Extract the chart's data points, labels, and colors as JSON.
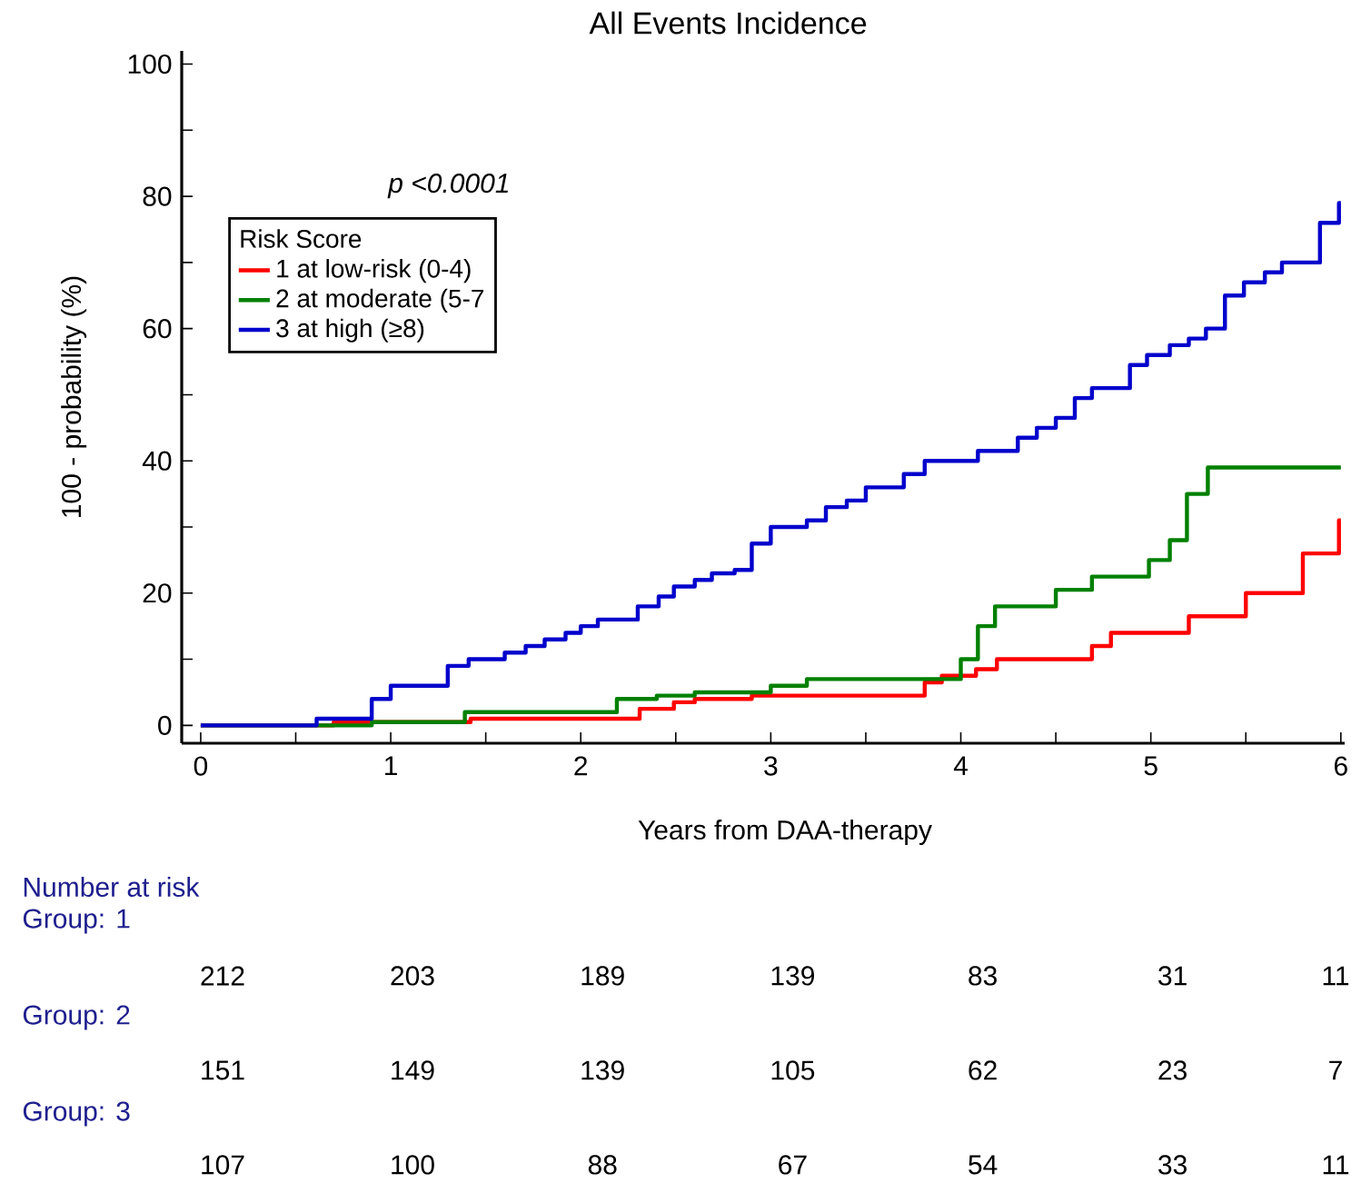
{
  "chart_data": {
    "type": "step",
    "title": "All Events Incidence",
    "xlabel": "Years from DAA-therapy",
    "ylabel": "100 -  probability (%)",
    "legend_title": "Risk Score",
    "legend": "top left",
    "grid": false,
    "marker": "none",
    "line_style": "solid",
    "xlim": [
      -0.1,
      6.02
    ],
    "ylim": [
      -2.7,
      102
    ],
    "xticks": [
      0,
      {
        "value": 0.5,
        "label": null
      },
      1,
      {
        "value": 1.5,
        "label": null
      },
      2,
      {
        "value": 2.5,
        "label": null
      },
      3,
      {
        "value": 3.5,
        "label": null
      },
      4,
      {
        "value": 4.5,
        "label": null
      },
      5,
      {
        "value": 5.5,
        "label": null
      },
      6
    ],
    "yticks": [
      0,
      {
        "value": 10,
        "label": null
      },
      20,
      {
        "value": 30,
        "label": null
      },
      40,
      {
        "value": 50,
        "label": null
      },
      60,
      {
        "value": 70,
        "label": null
      },
      80,
      {
        "value": 90,
        "label": null
      },
      100
    ],
    "series": [
      {
        "name": "1  at low-risk (0-4)",
        "color": "#ff0000",
        "x": [
          0,
          0.7,
          1.42,
          2.31,
          2.49,
          2.6,
          2.9,
          3.81,
          3.9,
          4.08,
          4.19,
          4.69,
          4.79,
          5.2,
          5.5,
          5.8,
          5.99,
          6.0
        ],
        "values": [
          0,
          0.5,
          1,
          2.5,
          3.5,
          4,
          4.5,
          6.5,
          7.5,
          8.5,
          10,
          12,
          14,
          16.5,
          20,
          26,
          31,
          31
        ]
      },
      {
        "name": "2  at moderate (5-7",
        "color": "#008000",
        "x": [
          0,
          0.9,
          1.39,
          2.19,
          2.4,
          2.6,
          3.0,
          3.19,
          4.0,
          4.09,
          4.18,
          4.5,
          4.69,
          4.99,
          5.1,
          5.19,
          5.3,
          6.0
        ],
        "values": [
          0,
          0.5,
          2,
          4,
          4.5,
          5,
          6,
          7,
          10,
          15,
          18,
          20.5,
          22.5,
          25,
          28,
          35,
          39,
          39
        ]
      },
      {
        "name": "3  at high (≥8)",
        "color": "#0000cc",
        "x": [
          0,
          0.61,
          0.9,
          1.0,
          1.3,
          1.41,
          1.6,
          1.71,
          1.81,
          1.92,
          2.0,
          2.09,
          2.3,
          2.41,
          2.49,
          2.6,
          2.69,
          2.81,
          2.9,
          3.0,
          3.19,
          3.29,
          3.4,
          3.5,
          3.7,
          3.81,
          4.09,
          4.3,
          4.4,
          4.5,
          4.6,
          4.69,
          4.89,
          4.98,
          5.1,
          5.2,
          5.29,
          5.39,
          5.49,
          5.6,
          5.69,
          5.89,
          5.99,
          6.0
        ],
        "values": [
          0,
          1,
          4,
          6,
          9,
          10,
          11,
          12,
          13,
          14,
          15,
          16,
          18,
          19.5,
          21,
          22,
          23,
          23.5,
          27.5,
          30,
          31,
          33,
          34,
          36,
          38,
          40,
          41.5,
          43.5,
          45,
          46.5,
          49.5,
          51,
          54.5,
          56,
          57.5,
          58.5,
          60,
          65,
          67,
          68.5,
          70,
          76,
          79,
          79
        ]
      }
    ],
    "annotations": [
      "p <0.0001",
      "Number at risk",
      "Group: 1",
      "212",
      "203",
      "189",
      "139",
      "83",
      "31",
      "11",
      "Group: 2",
      "151",
      "149",
      "139",
      "105",
      "62",
      "23",
      "7",
      "Group: 3",
      "107",
      "100",
      "88",
      "67",
      "54",
      "33",
      "11"
    ]
  }
}
